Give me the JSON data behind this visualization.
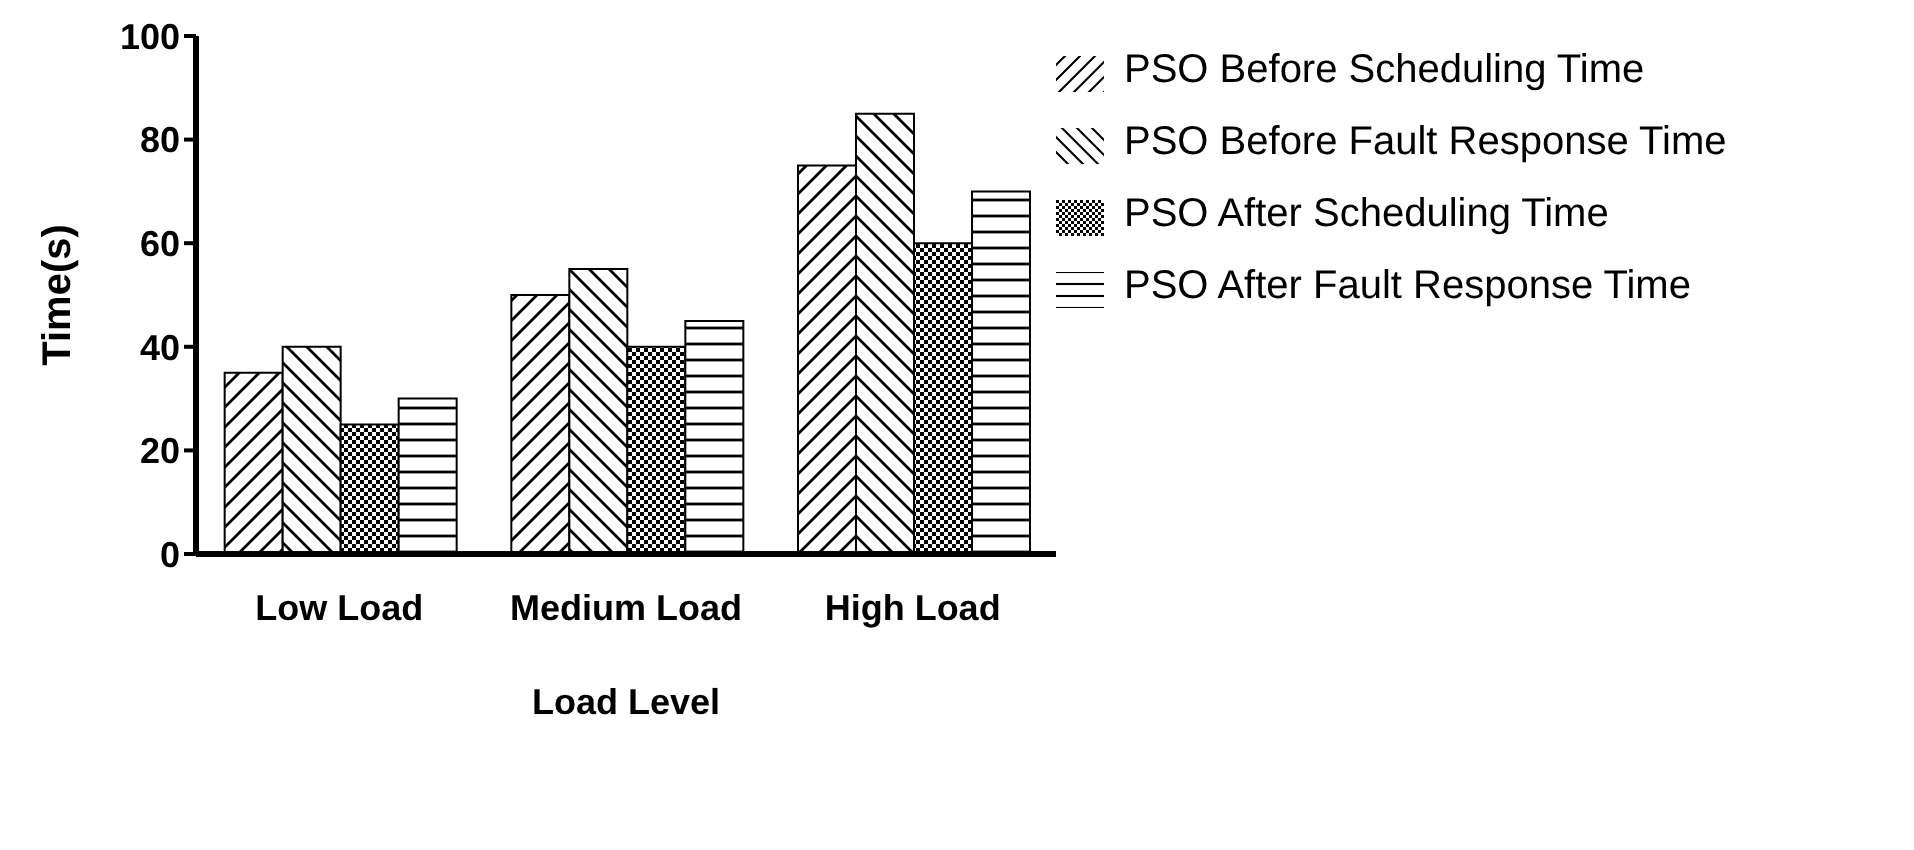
{
  "chart_data": {
    "type": "bar",
    "xlabel": "Load Level",
    "ylabel": "Time(s)",
    "categories": [
      "Low Load",
      "Medium Load",
      "High Load"
    ],
    "series": [
      {
        "name": "PSO Before Scheduling Time",
        "color": "#000000",
        "values": [
          35,
          50,
          75
        ]
      },
      {
        "name": "PSO Before Fault Response Time",
        "color": "#000000",
        "values": [
          40,
          55,
          85
        ]
      },
      {
        "name": "PSO After Scheduling Time",
        "color": "#000000",
        "values": [
          25,
          40,
          60
        ]
      },
      {
        "name": "PSO After Fault Response Time",
        "color": "#000000",
        "values": [
          30,
          45,
          70
        ]
      }
    ],
    "ylim": [
      0,
      100
    ],
    "yticks": [
      0,
      20,
      40,
      60,
      80,
      100
    ],
    "grid": false,
    "legend": "top right"
  }
}
